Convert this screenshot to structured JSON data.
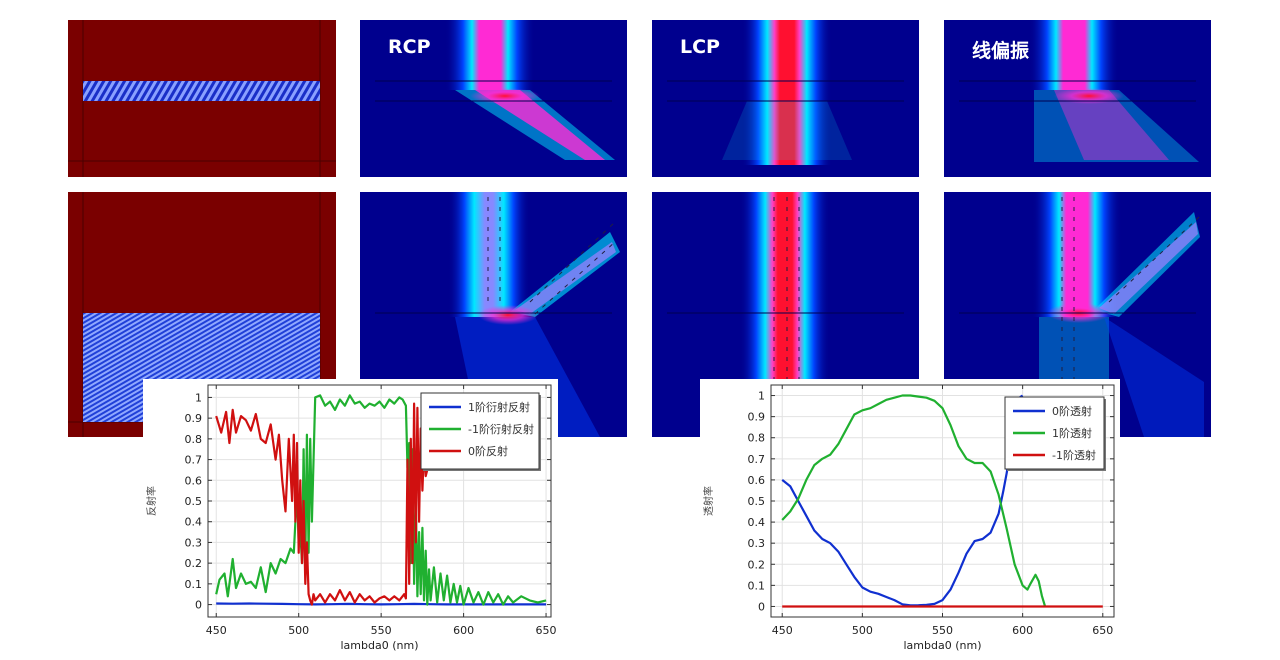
{
  "panels": {
    "row1": {
      "geometry": {
        "name": "geometry-thin-grating"
      },
      "rcp": {
        "label": "RCP"
      },
      "lcp": {
        "label": "LCP"
      },
      "linear": {
        "label": "线偏振"
      }
    },
    "row2": {
      "geometry": {
        "name": "geometry-thick-grating"
      },
      "rcp": {
        "label": ""
      },
      "lcp": {
        "label": ""
      },
      "linear": {
        "label": ""
      }
    },
    "colors": {
      "geometry_bg": "#7a0000",
      "grating_stripe_a": "#2040d0",
      "grating_stripe_b": "#8aa0ff",
      "field_bg": "#00008e",
      "field_cyan": "#00e0ff",
      "field_magenta": "#ff2ad4",
      "field_red": "#ff1030"
    }
  },
  "chart_data": [
    {
      "type": "line",
      "title": "",
      "xlabel": "lambda0 (nm)",
      "ylabel": "反射率",
      "xlim": [
        445,
        653
      ],
      "ylim": [
        -0.06,
        1.06
      ],
      "xticks": [
        450,
        500,
        550,
        600,
        650
      ],
      "yticks": [
        0,
        0.1,
        0.2,
        0.3,
        0.4,
        0.5,
        0.6,
        0.7,
        0.8,
        0.9,
        1
      ],
      "ytick_labels": [
        "0",
        "0.1",
        "0.2",
        "0.3",
        "0.4",
        "0.5",
        "0.6",
        "0.7",
        "0.8",
        "0.9",
        "1"
      ],
      "grid": true,
      "legend_position": "top-right",
      "series": [
        {
          "name": "1阶衍射反射",
          "color": "#1030d0",
          "x": [
            450,
            460,
            470,
            480,
            490,
            500,
            510,
            520,
            530,
            540,
            550,
            560,
            570,
            580,
            590,
            600,
            610,
            620,
            630,
            640,
            650
          ],
          "y": [
            0.005,
            0.004,
            0.005,
            0.004,
            0.003,
            0.002,
            0.001,
            0.002,
            0.003,
            0.002,
            0.001,
            0.002,
            0.003,
            0.002,
            0.001,
            0.001,
            0.001,
            0.001,
            0.001,
            0.001,
            0.001
          ]
        },
        {
          "name": "-1阶衍射反射",
          "color": "#20b030",
          "x": [
            450,
            452,
            455,
            457,
            460,
            462,
            465,
            468,
            471,
            474,
            477,
            480,
            483,
            486,
            489,
            492,
            495,
            497,
            499,
            500,
            501,
            502,
            503,
            504,
            505,
            506,
            507,
            508,
            510,
            513,
            516,
            519,
            522,
            525,
            528,
            531,
            534,
            537,
            540,
            543,
            546,
            549,
            552,
            555,
            558,
            561,
            563,
            565,
            566,
            567,
            568,
            569,
            570,
            571,
            572,
            573,
            574,
            575,
            576,
            577,
            578,
            579,
            580,
            582,
            584,
            586,
            588,
            590,
            592,
            594,
            596,
            598,
            600,
            603,
            606,
            609,
            612,
            615,
            618,
            621,
            624,
            627,
            630,
            635,
            640,
            645,
            650
          ],
          "y": [
            0.05,
            0.12,
            0.15,
            0.04,
            0.22,
            0.08,
            0.15,
            0.1,
            0.11,
            0.08,
            0.18,
            0.06,
            0.2,
            0.15,
            0.22,
            0.2,
            0.27,
            0.25,
            0.55,
            0.3,
            0.35,
            0.2,
            0.75,
            0.2,
            0.82,
            0.25,
            0.8,
            0.4,
            1.0,
            1.01,
            0.96,
            0.98,
            0.94,
            0.99,
            0.96,
            1.01,
            0.97,
            0.98,
            0.95,
            0.97,
            0.96,
            0.98,
            0.95,
            0.99,
            0.97,
            1.0,
            0.99,
            0.96,
            0.66,
            0.78,
            0.2,
            0.75,
            0.1,
            0.5,
            0.04,
            0.35,
            0.05,
            0.37,
            0.02,
            0.26,
            0.0,
            0.17,
            0.02,
            0.18,
            0.01,
            0.15,
            0.02,
            0.14,
            0.01,
            0.1,
            0.01,
            0.09,
            0.0,
            0.08,
            0.01,
            0.06,
            0.0,
            0.06,
            0.01,
            0.05,
            0.0,
            0.04,
            0.01,
            0.04,
            0.02,
            0.01,
            0.02
          ]
        },
        {
          "name": "0阶反射",
          "color": "#d01010",
          "x": [
            450,
            453,
            456,
            458,
            460,
            462,
            465,
            468,
            471,
            474,
            477,
            480,
            483,
            486,
            488,
            490,
            492,
            494,
            496,
            497,
            498,
            499,
            500,
            501,
            502,
            503,
            504,
            505,
            506,
            507,
            508,
            509,
            510,
            513,
            516,
            519,
            522,
            525,
            528,
            531,
            534,
            537,
            540,
            543,
            546,
            549,
            552,
            555,
            558,
            561,
            564,
            565,
            566,
            567,
            568,
            569,
            570,
            571,
            572,
            573,
            574,
            575,
            576,
            577,
            578
          ],
          "y": [
            0.91,
            0.83,
            0.93,
            0.78,
            0.94,
            0.83,
            0.91,
            0.89,
            0.84,
            0.92,
            0.8,
            0.78,
            0.87,
            0.7,
            0.82,
            0.6,
            0.45,
            0.8,
            0.5,
            0.82,
            0.4,
            0.78,
            0.25,
            0.6,
            0.2,
            0.5,
            0.1,
            0.3,
            0.05,
            0.02,
            0.0,
            0.05,
            0.02,
            0.05,
            0.01,
            0.05,
            0.02,
            0.07,
            0.02,
            0.06,
            0.01,
            0.05,
            0.02,
            0.04,
            0.01,
            0.03,
            0.04,
            0.02,
            0.04,
            0.02,
            0.05,
            0.03,
            0.7,
            0.1,
            0.8,
            0.2,
            0.97,
            0.3,
            0.95,
            0.4,
            0.85,
            0.55,
            0.75,
            0.62,
            0.65
          ]
        }
      ]
    },
    {
      "type": "line",
      "title": "",
      "xlabel": "lambda0 (nm)",
      "ylabel": "透射率",
      "xlim": [
        443,
        657
      ],
      "ylim": [
        -0.05,
        1.05
      ],
      "xticks": [
        450,
        500,
        550,
        600,
        650
      ],
      "yticks": [
        0,
        0.1,
        0.2,
        0.3,
        0.4,
        0.5,
        0.6,
        0.7,
        0.8,
        0.9,
        1
      ],
      "ytick_labels": [
        "0",
        "0.1",
        "0.2",
        "0.3",
        "0.4",
        "0.5",
        "0.6",
        "0.7",
        "0.8",
        "0.9",
        "1"
      ],
      "grid": true,
      "legend_position": "top-right",
      "series": [
        {
          "name": "0阶透射",
          "color": "#1030d0",
          "x": [
            450,
            455,
            460,
            465,
            470,
            475,
            480,
            485,
            490,
            495,
            500,
            505,
            510,
            515,
            520,
            525,
            530,
            535,
            540,
            545,
            550,
            555,
            560,
            565,
            570,
            575,
            580,
            585,
            588,
            590,
            592,
            594,
            596,
            598,
            600
          ],
          "y": [
            0.6,
            0.57,
            0.5,
            0.43,
            0.36,
            0.32,
            0.3,
            0.26,
            0.2,
            0.14,
            0.09,
            0.07,
            0.06,
            0.045,
            0.03,
            0.01,
            0.005,
            0.006,
            0.008,
            0.012,
            0.03,
            0.08,
            0.16,
            0.25,
            0.31,
            0.32,
            0.35,
            0.44,
            0.55,
            0.63,
            0.72,
            0.82,
            0.92,
            0.99,
            1.0
          ]
        },
        {
          "name": "1阶透射",
          "color": "#20b030",
          "x": [
            450,
            455,
            460,
            465,
            470,
            475,
            480,
            485,
            490,
            495,
            500,
            505,
            510,
            515,
            520,
            525,
            530,
            535,
            540,
            545,
            550,
            555,
            560,
            565,
            570,
            575,
            580,
            585,
            590,
            595,
            600,
            603,
            605,
            608,
            610,
            612,
            614
          ],
          "y": [
            0.41,
            0.45,
            0.51,
            0.6,
            0.67,
            0.7,
            0.72,
            0.77,
            0.84,
            0.91,
            0.93,
            0.94,
            0.96,
            0.98,
            0.99,
            1.0,
            1.0,
            0.995,
            0.99,
            0.975,
            0.94,
            0.86,
            0.76,
            0.7,
            0.68,
            0.68,
            0.64,
            0.53,
            0.37,
            0.2,
            0.1,
            0.08,
            0.11,
            0.15,
            0.12,
            0.05,
            0.0
          ]
        },
        {
          "name": "-1阶透射",
          "color": "#d01010",
          "x": [
            450,
            500,
            550,
            600,
            650
          ],
          "y": [
            0,
            0,
            0,
            0,
            0
          ]
        }
      ]
    }
  ]
}
